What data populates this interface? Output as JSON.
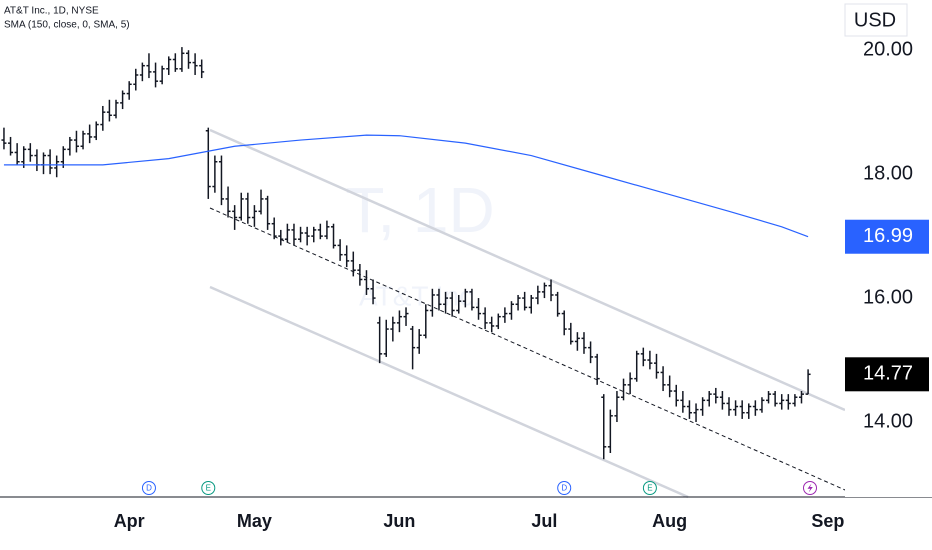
{
  "chart_data": {
    "type": "ohlc",
    "title": "AT&T Inc., 1D, NYSE",
    "subtitle": "SMA (150, close, 0, SMA, 5)",
    "currency": "USD",
    "watermark": {
      "symbol": "T, 1D",
      "name": "AT&T Inc."
    },
    "color": "#131722",
    "ylim": [
      12.79,
      20.81
    ],
    "yticks": [
      {
        "value": 20,
        "label": "20.00"
      },
      {
        "value": 18,
        "label": "18.00"
      },
      {
        "value": 16,
        "label": "16.00"
      },
      {
        "value": 14,
        "label": "14.00"
      }
    ],
    "xlim": [
      -0.6,
      127.6
    ],
    "xticks": [
      {
        "value": 19,
        "label": "Apr"
      },
      {
        "value": 38,
        "label": "May"
      },
      {
        "value": 60,
        "label": "Jun"
      },
      {
        "value": 82,
        "label": "Jul"
      },
      {
        "value": 101,
        "label": "Aug"
      },
      {
        "value": 125,
        "label": "Sep"
      }
    ],
    "ohlc": [
      [
        18.55,
        18.75,
        18.4,
        18.5
      ],
      [
        18.5,
        18.6,
        18.3,
        18.35
      ],
      [
        18.35,
        18.5,
        18.15,
        18.2
      ],
      [
        18.2,
        18.45,
        18.1,
        18.4
      ],
      [
        18.4,
        18.5,
        18.2,
        18.3
      ],
      [
        18.3,
        18.4,
        18.05,
        18.15
      ],
      [
        18.15,
        18.35,
        18.0,
        18.3
      ],
      [
        18.3,
        18.4,
        18.0,
        18.1
      ],
      [
        18.1,
        18.3,
        17.95,
        18.2
      ],
      [
        18.2,
        18.45,
        18.1,
        18.4
      ],
      [
        18.4,
        18.6,
        18.3,
        18.55
      ],
      [
        18.55,
        18.7,
        18.35,
        18.45
      ],
      [
        18.45,
        18.7,
        18.4,
        18.65
      ],
      [
        18.65,
        18.8,
        18.5,
        18.6
      ],
      [
        18.6,
        18.85,
        18.55,
        18.8
      ],
      [
        18.8,
        19.1,
        18.7,
        19.0
      ],
      [
        19.0,
        19.2,
        18.85,
        18.95
      ],
      [
        18.95,
        19.2,
        18.9,
        19.15
      ],
      [
        19.15,
        19.35,
        19.05,
        19.3
      ],
      [
        19.3,
        19.5,
        19.2,
        19.45
      ],
      [
        19.45,
        19.7,
        19.35,
        19.6
      ],
      [
        19.6,
        19.8,
        19.5,
        19.75
      ],
      [
        19.75,
        19.95,
        19.55,
        19.65
      ],
      [
        19.65,
        19.8,
        19.4,
        19.5
      ],
      [
        19.5,
        19.75,
        19.45,
        19.7
      ],
      [
        19.7,
        19.9,
        19.6,
        19.85
      ],
      [
        19.85,
        19.95,
        19.65,
        19.7
      ],
      [
        19.7,
        20.05,
        19.65,
        19.95
      ],
      [
        19.95,
        20.0,
        19.7,
        19.8
      ],
      [
        19.8,
        19.95,
        19.6,
        19.75
      ],
      [
        19.75,
        19.85,
        19.55,
        19.65
      ],
      [
        18.7,
        18.75,
        17.6,
        17.8
      ],
      [
        17.8,
        18.3,
        17.7,
        18.2
      ],
      [
        18.2,
        18.3,
        17.5,
        17.6
      ],
      [
        17.6,
        17.8,
        17.3,
        17.4
      ],
      [
        17.4,
        17.5,
        17.1,
        17.3
      ],
      [
        17.3,
        17.7,
        17.25,
        17.6
      ],
      [
        17.6,
        17.7,
        17.2,
        17.3
      ],
      [
        17.3,
        17.5,
        17.15,
        17.4
      ],
      [
        17.4,
        17.75,
        17.35,
        17.6
      ],
      [
        17.6,
        17.65,
        17.1,
        17.2
      ],
      [
        17.2,
        17.3,
        16.95,
        17.0
      ],
      [
        17.0,
        17.1,
        16.85,
        16.95
      ],
      [
        16.95,
        17.2,
        16.9,
        17.1
      ],
      [
        17.1,
        17.2,
        16.85,
        16.95
      ],
      [
        16.95,
        17.15,
        16.9,
        17.05
      ],
      [
        17.05,
        17.15,
        16.85,
        17.0
      ],
      [
        17.0,
        17.15,
        16.9,
        17.1
      ],
      [
        17.1,
        17.2,
        16.95,
        17.0
      ],
      [
        17.0,
        17.25,
        16.95,
        17.15
      ],
      [
        17.15,
        17.2,
        16.8,
        16.85
      ],
      [
        16.85,
        16.95,
        16.6,
        16.7
      ],
      [
        16.7,
        16.85,
        16.5,
        16.6
      ],
      [
        16.6,
        16.75,
        16.35,
        16.45
      ],
      [
        16.45,
        16.55,
        16.2,
        16.3
      ],
      [
        16.3,
        16.45,
        16.05,
        16.15
      ],
      [
        16.15,
        16.3,
        15.9,
        16.0
      ],
      [
        15.6,
        15.7,
        14.95,
        15.1
      ],
      [
        15.1,
        15.65,
        15.05,
        15.5
      ],
      [
        15.5,
        15.7,
        15.3,
        15.6
      ],
      [
        15.6,
        15.8,
        15.45,
        15.7
      ],
      [
        15.7,
        15.85,
        15.55,
        15.75
      ],
      [
        15.5,
        15.55,
        14.85,
        15.2
      ],
      [
        15.2,
        15.5,
        15.1,
        15.4
      ],
      [
        15.4,
        15.9,
        15.35,
        15.8
      ],
      [
        15.8,
        16.15,
        15.7,
        16.05
      ],
      [
        16.05,
        16.15,
        15.8,
        15.9
      ],
      [
        15.9,
        16.1,
        15.75,
        16.0
      ],
      [
        16.0,
        16.1,
        15.7,
        15.8
      ],
      [
        15.8,
        16.05,
        15.75,
        15.95
      ],
      [
        15.95,
        16.15,
        15.85,
        16.1
      ],
      [
        16.1,
        16.15,
        15.8,
        15.85
      ],
      [
        15.85,
        16.0,
        15.65,
        15.75
      ],
      [
        15.75,
        15.85,
        15.5,
        15.6
      ],
      [
        15.6,
        15.7,
        15.45,
        15.55
      ],
      [
        15.55,
        15.75,
        15.5,
        15.7
      ],
      [
        15.7,
        15.85,
        15.6,
        15.75
      ],
      [
        15.75,
        15.95,
        15.65,
        15.9
      ],
      [
        15.9,
        16.05,
        15.8,
        16.0
      ],
      [
        16.0,
        16.1,
        15.8,
        15.85
      ],
      [
        15.85,
        16.05,
        15.75,
        16.0
      ],
      [
        16.0,
        16.2,
        15.9,
        16.1
      ],
      [
        16.1,
        16.25,
        16.0,
        16.2
      ],
      [
        16.2,
        16.3,
        15.95,
        16.05
      ],
      [
        16.05,
        16.1,
        15.7,
        15.75
      ],
      [
        15.75,
        15.8,
        15.4,
        15.5
      ],
      [
        15.5,
        15.6,
        15.25,
        15.3
      ],
      [
        15.3,
        15.45,
        15.15,
        15.35
      ],
      [
        15.35,
        15.45,
        15.1,
        15.2
      ],
      [
        15.2,
        15.3,
        14.95,
        15.05
      ],
      [
        15.05,
        15.1,
        14.6,
        14.7
      ],
      [
        14.4,
        14.45,
        13.4,
        13.6
      ],
      [
        13.6,
        14.2,
        13.5,
        14.1
      ],
      [
        14.1,
        14.5,
        14.0,
        14.4
      ],
      [
        14.4,
        14.7,
        14.35,
        14.6
      ],
      [
        14.6,
        14.8,
        14.45,
        14.7
      ],
      [
        14.7,
        15.15,
        14.65,
        15.1
      ],
      [
        15.1,
        15.2,
        14.9,
        15.0
      ],
      [
        15.0,
        15.15,
        14.85,
        14.95
      ],
      [
        14.95,
        15.1,
        14.7,
        14.8
      ],
      [
        14.8,
        14.9,
        14.5,
        14.6
      ],
      [
        14.6,
        14.75,
        14.4,
        14.5
      ],
      [
        14.5,
        14.6,
        14.25,
        14.35
      ],
      [
        14.35,
        14.5,
        14.15,
        14.25
      ],
      [
        14.25,
        14.35,
        14.05,
        14.15
      ],
      [
        14.15,
        14.3,
        14.0,
        14.2
      ],
      [
        14.2,
        14.4,
        14.1,
        14.35
      ],
      [
        14.35,
        14.5,
        14.25,
        14.45
      ],
      [
        14.45,
        14.55,
        14.3,
        14.4
      ],
      [
        14.4,
        14.5,
        14.2,
        14.3
      ],
      [
        14.3,
        14.4,
        14.1,
        14.2
      ],
      [
        14.2,
        14.35,
        14.1,
        14.25
      ],
      [
        14.25,
        14.35,
        14.05,
        14.15
      ],
      [
        14.15,
        14.3,
        14.05,
        14.25
      ],
      [
        14.25,
        14.35,
        14.1,
        14.2
      ],
      [
        14.2,
        14.4,
        14.15,
        14.35
      ],
      [
        14.35,
        14.5,
        14.3,
        14.45
      ],
      [
        14.45,
        14.5,
        14.25,
        14.3
      ],
      [
        14.3,
        14.45,
        14.2,
        14.35
      ],
      [
        14.35,
        14.45,
        14.2,
        14.3
      ],
      [
        14.3,
        14.45,
        14.25,
        14.4
      ],
      [
        14.4,
        14.5,
        14.3,
        14.45
      ],
      [
        14.45,
        14.85,
        14.45,
        14.77
      ]
    ],
    "sma": {
      "color": "#2962ff",
      "x": [
        0,
        15,
        25,
        35,
        45,
        55,
        60,
        70,
        80,
        90,
        100,
        110,
        118,
        122
      ],
      "values": [
        18.15,
        18.15,
        18.25,
        18.45,
        18.55,
        18.63,
        18.62,
        18.5,
        18.3,
        18.0,
        17.7,
        17.4,
        17.15,
        16.99
      ],
      "value_label": "16.99"
    },
    "last_price": {
      "value": 14.77,
      "label": "14.77"
    },
    "events": [
      {
        "x": 22,
        "label": "D",
        "color": "#2962ff"
      },
      {
        "x": 31,
        "label": "E",
        "color": "#089981"
      },
      {
        "x": 85,
        "label": "D",
        "color": "#2962ff"
      },
      {
        "x": 98,
        "label": "E",
        "color": "#089981"
      }
    ]
  }
}
